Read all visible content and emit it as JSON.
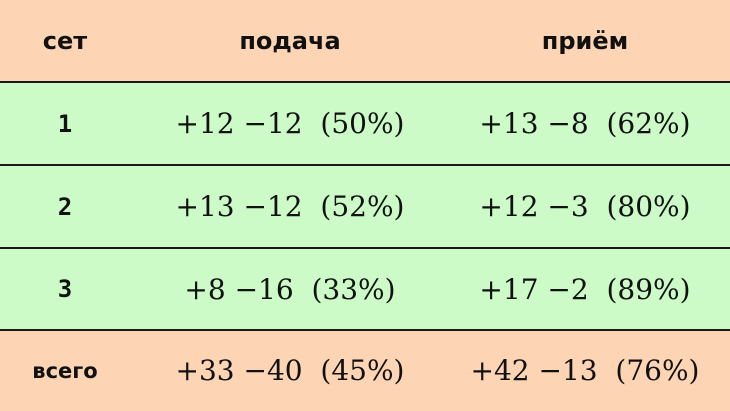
{
  "colors": {
    "header_bg": "#fdd4b4",
    "row_bg": "#ccfbc8",
    "total_bg": "#fdd4b4"
  },
  "header": {
    "set": "сет",
    "serve": "подача",
    "receive": "приём"
  },
  "rows": [
    {
      "set": "1",
      "serve": "+12 −12  (50%)",
      "receive": "+13 −8  (62%)"
    },
    {
      "set": "2",
      "serve": "+13 −12  (52%)",
      "receive": "+12 −3  (80%)"
    },
    {
      "set": "3",
      "serve": "+8 −16  (33%)",
      "receive": "+17 −2  (89%)"
    }
  ],
  "total": {
    "set": "всего",
    "serve": "+33 −40  (45%)",
    "receive": "+42 −13  (76%)"
  }
}
